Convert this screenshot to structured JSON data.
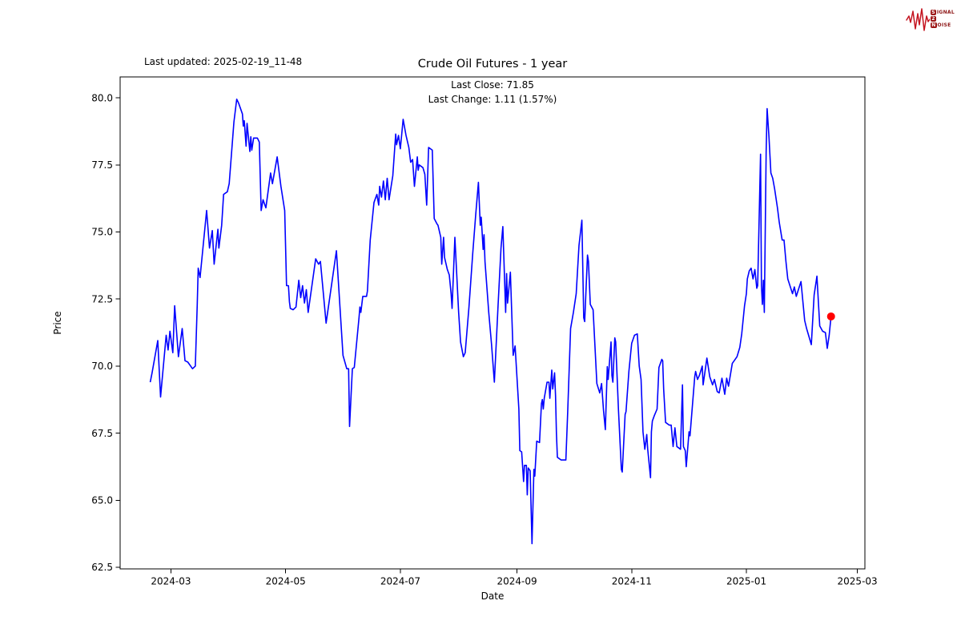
{
  "header": {
    "last_updated": "Last updated: 2025-02-19_11-48",
    "title": "Crude Oil Futures - 1 year",
    "subtitle_line1": "Last Close: 71.85",
    "subtitle_line2": "Last Change: 1.11 (1.57%)"
  },
  "logo": {
    "rows": [
      {
        "boxed": "S",
        "rest": "IGNAL"
      },
      {
        "boxed": "2",
        "rest": ""
      },
      {
        "boxed": "N",
        "rest": "OISE"
      }
    ]
  },
  "chart_data": {
    "type": "line",
    "title": "Crude Oil Futures - 1 year",
    "xlabel": "Date",
    "ylabel": "Price",
    "last_close": 71.85,
    "last_change": "1.11 (1.57%)",
    "line_color": "#0000ff",
    "marker_color": "#ff0000",
    "axis_color": "#000000",
    "grid": false,
    "x_unit": "days since 2024-02-19",
    "x_range": [
      -16,
      380
    ],
    "y_range": [
      62.44,
      80.78
    ],
    "x_ticks": [
      {
        "d": 11,
        "label": "2024-03"
      },
      {
        "d": 72,
        "label": "2024-05"
      },
      {
        "d": 133,
        "label": "2024-07"
      },
      {
        "d": 195,
        "label": "2024-09"
      },
      {
        "d": 256,
        "label": "2024-11"
      },
      {
        "d": 317,
        "label": "2025-01"
      },
      {
        "d": 376,
        "label": "2025-03"
      }
    ],
    "y_ticks": [
      "62.5",
      "65.0",
      "67.5",
      "70.0",
      "72.5",
      "75.0",
      "77.5",
      "80.0"
    ],
    "points": [
      [
        0,
        69.4
      ],
      [
        1,
        69.75
      ],
      [
        4,
        70.95
      ],
      [
        5.5,
        68.85
      ],
      [
        8.5,
        71.15
      ],
      [
        9.5,
        70.6
      ],
      [
        10.5,
        71.3
      ],
      [
        12,
        70.5
      ],
      [
        13,
        72.25
      ],
      [
        15,
        70.35
      ],
      [
        17,
        71.4
      ],
      [
        18.5,
        70.2
      ],
      [
        20,
        70.15
      ],
      [
        22.5,
        69.9
      ],
      [
        24,
        70.0
      ],
      [
        25,
        72.3
      ],
      [
        25.5,
        73.65
      ],
      [
        26.5,
        73.3
      ],
      [
        30,
        75.8
      ],
      [
        31.5,
        74.4
      ],
      [
        33,
        75.05
      ],
      [
        34,
        73.8
      ],
      [
        36,
        75.1
      ],
      [
        36.5,
        74.4
      ],
      [
        38,
        75.25
      ],
      [
        39,
        76.4
      ],
      [
        41,
        76.5
      ],
      [
        42,
        76.8
      ],
      [
        44.5,
        79.1
      ],
      [
        46,
        79.95
      ],
      [
        47,
        79.8
      ],
      [
        49,
        79.4
      ],
      [
        49.5,
        78.95
      ],
      [
        50,
        79.15
      ],
      [
        51,
        78.2
      ],
      [
        51.5,
        79.05
      ],
      [
        53,
        78.0
      ],
      [
        53.5,
        78.55
      ],
      [
        54,
        78.05
      ],
      [
        55,
        78.5
      ],
      [
        57,
        78.5
      ],
      [
        58,
        78.35
      ],
      [
        59,
        75.8
      ],
      [
        60,
        76.2
      ],
      [
        61.5,
        75.9
      ],
      [
        64,
        77.2
      ],
      [
        65,
        76.8
      ],
      [
        67.5,
        77.8
      ],
      [
        69.5,
        76.7
      ],
      [
        71.5,
        75.8
      ],
      [
        72.5,
        73.0
      ],
      [
        73.5,
        73.0
      ],
      [
        74,
        72.4
      ],
      [
        74.5,
        72.15
      ],
      [
        76,
        72.1
      ],
      [
        77.5,
        72.2
      ],
      [
        79,
        73.2
      ],
      [
        80,
        72.55
      ],
      [
        81,
        73.0
      ],
      [
        82,
        72.35
      ],
      [
        83,
        72.85
      ],
      [
        84,
        72.0
      ],
      [
        88,
        74.0
      ],
      [
        89.5,
        73.8
      ],
      [
        90.5,
        73.9
      ],
      [
        93.5,
        71.6
      ],
      [
        99,
        74.3
      ],
      [
        102.5,
        70.4
      ],
      [
        104.5,
        69.9
      ],
      [
        105.5,
        69.9
      ],
      [
        106,
        67.75
      ],
      [
        107.5,
        69.9
      ],
      [
        108.5,
        69.95
      ],
      [
        111,
        71.8
      ],
      [
        111.5,
        72.2
      ],
      [
        112,
        72.0
      ],
      [
        113,
        72.6
      ],
      [
        115,
        72.6
      ],
      [
        115.5,
        72.8
      ],
      [
        117,
        74.7
      ],
      [
        119,
        76.1
      ],
      [
        120.5,
        76.4
      ],
      [
        121.5,
        76.0
      ],
      [
        122,
        76.7
      ],
      [
        123,
        76.3
      ],
      [
        124,
        76.9
      ],
      [
        125,
        76.2
      ],
      [
        126,
        77.0
      ],
      [
        127,
        76.2
      ],
      [
        129,
        77.1
      ],
      [
        130.5,
        78.65
      ],
      [
        131,
        78.25
      ],
      [
        132,
        78.6
      ],
      [
        133,
        78.1
      ],
      [
        134.5,
        79.2
      ],
      [
        136,
        78.6
      ],
      [
        137.5,
        78.15
      ],
      [
        138.5,
        77.6
      ],
      [
        139.5,
        77.7
      ],
      [
        140.5,
        76.7
      ],
      [
        142,
        77.8
      ],
      [
        142.5,
        77.3
      ],
      [
        143,
        77.5
      ],
      [
        145,
        77.4
      ],
      [
        146,
        77.15
      ],
      [
        147,
        76.0
      ],
      [
        148,
        78.15
      ],
      [
        150,
        78.05
      ],
      [
        151,
        75.5
      ],
      [
        152.5,
        75.3
      ],
      [
        153,
        75.25
      ],
      [
        154.5,
        74.8
      ],
      [
        155,
        73.8
      ],
      [
        156,
        74.8
      ],
      [
        156.5,
        74.05
      ],
      [
        158,
        73.6
      ],
      [
        159,
        73.4
      ],
      [
        160,
        72.7
      ],
      [
        160.5,
        72.15
      ],
      [
        162,
        74.8
      ],
      [
        164,
        72.0
      ],
      [
        165,
        70.9
      ],
      [
        166.5,
        70.35
      ],
      [
        167.5,
        70.5
      ],
      [
        169.5,
        72.2
      ],
      [
        171.5,
        74.2
      ],
      [
        173,
        75.6
      ],
      [
        174.5,
        76.85
      ],
      [
        175.5,
        75.25
      ],
      [
        176,
        75.55
      ],
      [
        177,
        74.35
      ],
      [
        177.5,
        74.9
      ],
      [
        178,
        73.9
      ],
      [
        180,
        72.0
      ],
      [
        181.5,
        70.8
      ],
      [
        183,
        69.4
      ],
      [
        185,
        72.3
      ],
      [
        186.5,
        74.4
      ],
      [
        187.5,
        75.2
      ],
      [
        189,
        72.0
      ],
      [
        189.5,
        73.45
      ],
      [
        190,
        72.35
      ],
      [
        191.5,
        73.5
      ],
      [
        193,
        70.4
      ],
      [
        194,
        70.75
      ],
      [
        196,
        68.4
      ],
      [
        196.5,
        66.85
      ],
      [
        197.5,
        66.8
      ],
      [
        198.5,
        65.7
      ],
      [
        199,
        66.3
      ],
      [
        200,
        66.3
      ],
      [
        200.5,
        65.2
      ],
      [
        201,
        66.2
      ],
      [
        202,
        66.1
      ],
      [
        203,
        63.38
      ],
      [
        204,
        66.15
      ],
      [
        204.5,
        65.9
      ],
      [
        205.5,
        67.2
      ],
      [
        207,
        67.15
      ],
      [
        208,
        68.6
      ],
      [
        208.5,
        68.75
      ],
      [
        209,
        68.4
      ],
      [
        209.5,
        68.8
      ],
      [
        211,
        69.4
      ],
      [
        212,
        69.4
      ],
      [
        212.5,
        68.8
      ],
      [
        213.5,
        69.85
      ],
      [
        214,
        69.15
      ],
      [
        215,
        69.75
      ],
      [
        215.5,
        68.9
      ],
      [
        216,
        67.5
      ],
      [
        216.5,
        66.6
      ],
      [
        218.5,
        66.5
      ],
      [
        221,
        66.5
      ],
      [
        222,
        68.3
      ],
      [
        223.5,
        71.4
      ],
      [
        225,
        72.0
      ],
      [
        226.5,
        72.7
      ],
      [
        228,
        74.5
      ],
      [
        229.5,
        75.44
      ],
      [
        230.5,
        71.8
      ],
      [
        231,
        71.66
      ],
      [
        232.5,
        74.14
      ],
      [
        233,
        73.9
      ],
      [
        234,
        72.3
      ],
      [
        235.5,
        72.1
      ],
      [
        237.5,
        69.35
      ],
      [
        239,
        69.0
      ],
      [
        240,
        69.35
      ],
      [
        241,
        68.35
      ],
      [
        242,
        67.63
      ],
      [
        243,
        69.98
      ],
      [
        243.5,
        69.5
      ],
      [
        245,
        70.9
      ],
      [
        245.5,
        69.65
      ],
      [
        246,
        69.4
      ],
      [
        247,
        71.05
      ],
      [
        247.5,
        70.9
      ],
      [
        249,
        68.35
      ],
      [
        250.5,
        66.15
      ],
      [
        251,
        66.05
      ],
      [
        252.5,
        68.2
      ],
      [
        253,
        68.3
      ],
      [
        254.5,
        69.8
      ],
      [
        255.5,
        70.5
      ],
      [
        256,
        70.85
      ],
      [
        257.5,
        71.15
      ],
      [
        259,
        71.2
      ],
      [
        260,
        70.0
      ],
      [
        261,
        69.5
      ],
      [
        262,
        67.55
      ],
      [
        263,
        66.9
      ],
      [
        264,
        67.45
      ],
      [
        264.5,
        66.9
      ],
      [
        266,
        65.84
      ],
      [
        266.5,
        67.55
      ],
      [
        267,
        67.95
      ],
      [
        268,
        68.15
      ],
      [
        269.5,
        68.4
      ],
      [
        270.5,
        69.95
      ],
      [
        272,
        70.25
      ],
      [
        272.5,
        70.2
      ],
      [
        273,
        69.15
      ],
      [
        274,
        67.9
      ],
      [
        276,
        67.8
      ],
      [
        277,
        67.8
      ],
      [
        278,
        67.0
      ],
      [
        279,
        67.7
      ],
      [
        280,
        67.0
      ],
      [
        282,
        66.9
      ],
      [
        283,
        69.3
      ],
      [
        283.5,
        67.0
      ],
      [
        284.5,
        66.85
      ],
      [
        285,
        66.25
      ],
      [
        286.5,
        67.55
      ],
      [
        287,
        67.4
      ],
      [
        289.5,
        69.6
      ],
      [
        290,
        69.8
      ],
      [
        291,
        69.5
      ],
      [
        292,
        69.65
      ],
      [
        293.5,
        70.0
      ],
      [
        294,
        69.3
      ],
      [
        296,
        70.3
      ],
      [
        297.5,
        69.6
      ],
      [
        299,
        69.3
      ],
      [
        300,
        69.5
      ],
      [
        301.5,
        69.05
      ],
      [
        302.5,
        69.0
      ],
      [
        304,
        69.55
      ],
      [
        305.5,
        68.95
      ],
      [
        306.5,
        69.55
      ],
      [
        307.5,
        69.25
      ],
      [
        309.5,
        70.1
      ],
      [
        310.5,
        70.2
      ],
      [
        312,
        70.35
      ],
      [
        313.5,
        70.7
      ],
      [
        314.5,
        71.2
      ],
      [
        316,
        72.25
      ],
      [
        317,
        72.7
      ],
      [
        317.5,
        73.25
      ],
      [
        318.5,
        73.55
      ],
      [
        319.5,
        73.65
      ],
      [
        320.5,
        73.25
      ],
      [
        321.5,
        73.6
      ],
      [
        322.5,
        72.9
      ],
      [
        323,
        73.0
      ],
      [
        324.5,
        77.9
      ],
      [
        325,
        73.0
      ],
      [
        325.5,
        72.3
      ],
      [
        326,
        73.2
      ],
      [
        326.5,
        72.0
      ],
      [
        327.5,
        78.0
      ],
      [
        328,
        79.6
      ],
      [
        329,
        78.55
      ],
      [
        330,
        77.2
      ],
      [
        331,
        77.0
      ],
      [
        332,
        76.6
      ],
      [
        333.5,
        75.9
      ],
      [
        334.5,
        75.35
      ],
      [
        336,
        74.7
      ],
      [
        337,
        74.7
      ],
      [
        338,
        73.9
      ],
      [
        339,
        73.25
      ],
      [
        341.5,
        72.7
      ],
      [
        342.5,
        72.95
      ],
      [
        343.5,
        72.6
      ],
      [
        346,
        73.15
      ],
      [
        348,
        71.7
      ],
      [
        349,
        71.4
      ],
      [
        351.5,
        70.8
      ],
      [
        353,
        72.65
      ],
      [
        354.5,
        73.35
      ],
      [
        356,
        71.5
      ],
      [
        357.5,
        71.3
      ],
      [
        359,
        71.25
      ],
      [
        360,
        70.66
      ],
      [
        361,
        71.15
      ],
      [
        362,
        71.85
      ]
    ],
    "last_point": [
      362,
      71.85
    ]
  }
}
